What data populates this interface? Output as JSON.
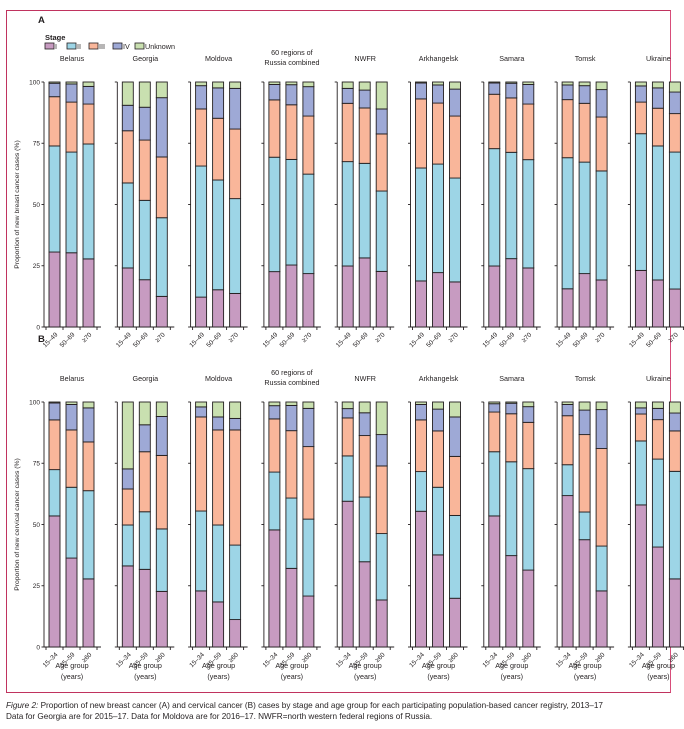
{
  "figure": {
    "label": "Figure 2:",
    "title": " Proportion of new breast cancer (A) and cervical cancer (B) cases by stage and age group for each participating population-based cancer registry, 2013–17",
    "note": "Data for Georgia are for 2015–17. Data for Moldova are for 2016–17. NWFR=north western federal regions of Russia."
  },
  "legend": {
    "title": "Stage",
    "items": [
      {
        "label": "I",
        "color": "#c79bc1"
      },
      {
        "label": "II",
        "color": "#9dd5e6"
      },
      {
        "label": "III",
        "color": "#f9b69a"
      },
      {
        "label": "IV",
        "color": "#9ea9d6"
      },
      {
        "label": "Unknown",
        "color": "#c9e0b0"
      }
    ]
  },
  "chart_data": [
    {
      "panel": "A",
      "type": "bar",
      "stacked": true,
      "ylabel": "Proportion of new breast cancer cases (%)",
      "ylim": [
        0,
        100
      ],
      "yticks": [
        "0",
        "25",
        "50",
        "75",
        "100"
      ],
      "xlabel": "",
      "age_groups": [
        "15–49",
        "50–69",
        "≥70"
      ],
      "series_names": [
        "I",
        "II",
        "III",
        "IV",
        "Unknown"
      ],
      "groups": [
        {
          "name": "Belarus",
          "bars": [
            [
              30.6,
              43.3,
              20.1,
              5.5,
              0.5
            ],
            [
              30.3,
              41.1,
              20.4,
              7.4,
              0.8
            ],
            [
              27.8,
              46.9,
              16.3,
              7.2,
              1.8
            ]
          ]
        },
        {
          "name": "Georgia",
          "bars": [
            [
              24.1,
              34.7,
              21.3,
              10.4,
              9.5
            ],
            [
              19.3,
              32.4,
              24.6,
              13.4,
              10.3
            ],
            [
              12.5,
              32.1,
              24.8,
              24.2,
              6.4
            ]
          ]
        },
        {
          "name": "Moldova",
          "bars": [
            [
              12.2,
              53.5,
              23.3,
              9.5,
              1.5
            ],
            [
              15.2,
              44.8,
              25.2,
              12.4,
              2.4
            ],
            [
              13.7,
              38.7,
              28.4,
              16.6,
              2.6
            ]
          ]
        },
        {
          "name": "60 regions of Russia combined",
          "bars": [
            [
              22.6,
              46.7,
              23.4,
              6.3,
              1.0
            ],
            [
              25.3,
              43.1,
              22.3,
              8.2,
              1.1
            ],
            [
              21.8,
              40.6,
              23.7,
              12.0,
              1.9
            ]
          ]
        },
        {
          "name": "NWFR",
          "bars": [
            [
              24.9,
              42.6,
              23.8,
              6.1,
              2.6
            ],
            [
              28.2,
              38.6,
              22.6,
              7.3,
              3.3
            ],
            [
              22.7,
              32.8,
              23.3,
              10.2,
              11.0
            ]
          ]
        },
        {
          "name": "Arkhangelsk",
          "bars": [
            [
              18.8,
              46.1,
              28.2,
              6.5,
              0.4
            ],
            [
              22.2,
              44.3,
              24.9,
              7.4,
              1.2
            ],
            [
              18.4,
              42.4,
              25.3,
              11.0,
              2.9
            ]
          ]
        },
        {
          "name": "Samara",
          "bars": [
            [
              24.9,
              47.9,
              22.2,
              4.6,
              0.4
            ],
            [
              27.9,
              43.4,
              22.2,
              6.0,
              0.5
            ],
            [
              24.1,
              44.2,
              22.7,
              8.0,
              1.0
            ]
          ]
        },
        {
          "name": "Tomsk",
          "bars": [
            [
              15.6,
              53.5,
              23.7,
              6.0,
              1.2
            ],
            [
              21.8,
              45.5,
              24.0,
              7.2,
              1.5
            ],
            [
              19.2,
              44.5,
              22.0,
              11.2,
              3.1
            ]
          ]
        },
        {
          "name": "Ukraine",
          "bars": [
            [
              23.1,
              55.8,
              12.9,
              6.6,
              1.6
            ],
            [
              19.2,
              54.7,
              15.4,
              8.3,
              2.4
            ],
            [
              15.5,
              55.9,
              15.7,
              8.8,
              4.1
            ]
          ]
        }
      ]
    },
    {
      "panel": "B",
      "type": "bar",
      "stacked": true,
      "ylabel": "Proportion of new cervical cancer cases (%)",
      "ylim": [
        0,
        100
      ],
      "yticks": [
        "0",
        "25",
        "50",
        "75",
        "100"
      ],
      "xlabel": "Age group (years)",
      "age_groups": [
        "15–34",
        "35–59",
        "≥60"
      ],
      "series_names": [
        "I",
        "II",
        "III",
        "IV",
        "Unknown"
      ],
      "groups": [
        {
          "name": "Belarus",
          "bars": [
            [
              53.5,
              18.9,
              20.3,
              6.9,
              0.4
            ],
            [
              36.3,
              28.9,
              23.4,
              10.4,
              1.0
            ],
            [
              27.8,
              36.0,
              19.9,
              13.9,
              2.4
            ]
          ]
        },
        {
          "name": "Georgia",
          "bars": [
            [
              33.1,
              16.7,
              14.7,
              8.2,
              27.3
            ],
            [
              31.7,
              23.5,
              24.5,
              11.0,
              9.3
            ],
            [
              22.7,
              25.5,
              30.0,
              15.9,
              5.9
            ]
          ]
        },
        {
          "name": "Moldova",
          "bars": [
            [
              22.9,
              32.6,
              38.4,
              4.1,
              2.0
            ],
            [
              18.4,
              31.4,
              38.8,
              5.3,
              6.1
            ],
            [
              11.2,
              30.4,
              47.0,
              4.7,
              6.7
            ]
          ]
        },
        {
          "name": "60 regions of Russia combined",
          "bars": [
            [
              47.8,
              23.6,
              21.7,
              5.4,
              1.5
            ],
            [
              32.1,
              28.7,
              27.5,
              10.3,
              1.4
            ],
            [
              20.8,
              31.4,
              29.6,
              15.6,
              2.6
            ]
          ]
        },
        {
          "name": "NWFR",
          "bars": [
            [
              59.5,
              18.5,
              15.5,
              3.8,
              2.7
            ],
            [
              34.8,
              26.4,
              25.1,
              9.3,
              4.4
            ],
            [
              19.2,
              27.1,
              27.6,
              12.8,
              13.3
            ]
          ]
        },
        {
          "name": "Arkhangelsk",
          "bars": [
            [
              55.4,
              16.2,
              21.1,
              6.3,
              1.0
            ],
            [
              37.6,
              27.6,
              23.0,
              8.9,
              2.9
            ],
            [
              19.9,
              33.8,
              24.1,
              16.1,
              6.1
            ]
          ]
        },
        {
          "name": "Samara",
          "bars": [
            [
              53.5,
              26.2,
              16.2,
              3.4,
              0.7
            ],
            [
              37.3,
              38.3,
              19.6,
              4.3,
              0.5
            ],
            [
              31.4,
              41.4,
              18.9,
              6.4,
              1.9
            ]
          ]
        },
        {
          "name": "Tomsk",
          "bars": [
            [
              61.8,
              12.6,
              20.0,
              4.6,
              1.0
            ],
            [
              43.8,
              11.3,
              31.6,
              10.0,
              3.3
            ],
            [
              22.9,
              18.3,
              39.8,
              15.9,
              3.1
            ]
          ]
        },
        {
          "name": "Ukraine",
          "bars": [
            [
              58.0,
              26.1,
              11.0,
              2.5,
              2.4
            ],
            [
              40.8,
              35.9,
              16.1,
              4.6,
              2.6
            ],
            [
              27.8,
              43.9,
              16.5,
              7.3,
              4.5
            ]
          ]
        }
      ]
    }
  ]
}
